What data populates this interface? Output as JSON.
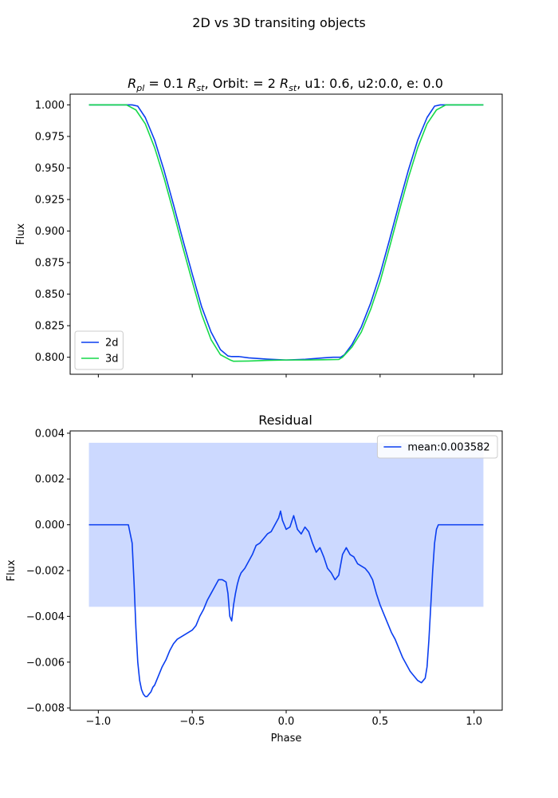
{
  "figure": {
    "title": "2D vs 3D transiting objects"
  },
  "chart_data": [
    {
      "type": "line",
      "title_parts": {
        "r": "R",
        "pl": "pl",
        "eq1": " = 0.1 ",
        "rst": "R",
        "st": "st",
        "mid": ", Orbit: = 2 ",
        "rst2": "R",
        "st2": "st",
        "tail": ", u1: 0.6, u2:0.0, e: 0.0"
      },
      "xlabel": "",
      "ylabel": "Flux",
      "xlim": [
        -1.15,
        1.15
      ],
      "ylim": [
        0.7865,
        1.0085
      ],
      "xticks": [
        -1.0,
        -0.5,
        0.0,
        0.5,
        1.0
      ],
      "yticks": [
        0.8,
        0.825,
        0.85,
        0.875,
        0.9,
        0.925,
        0.95,
        0.975,
        1.0
      ],
      "ytick_labels": [
        "0.800",
        "0.825",
        "0.850",
        "0.875",
        "0.900",
        "0.925",
        "0.950",
        "0.975",
        "1.000"
      ],
      "legend": {
        "position": "lower-left"
      },
      "series": [
        {
          "name": "2d",
          "color": "#0a3ef0",
          "x": [
            -1.05,
            -0.82,
            -0.79,
            -0.75,
            -0.7,
            -0.65,
            -0.6,
            -0.55,
            -0.5,
            -0.45,
            -0.4,
            -0.35,
            -0.31,
            -0.29,
            -0.25,
            -0.2,
            -0.1,
            0.0,
            0.1,
            0.2,
            0.25,
            0.29,
            0.31,
            0.35,
            0.4,
            0.45,
            0.5,
            0.55,
            0.6,
            0.65,
            0.7,
            0.75,
            0.79,
            0.82,
            1.05
          ],
          "y": [
            1.0,
            1.0,
            0.999,
            0.99,
            0.972,
            0.948,
            0.921,
            0.893,
            0.866,
            0.84,
            0.82,
            0.806,
            0.801,
            0.8005,
            0.8005,
            0.7995,
            0.7985,
            0.7978,
            0.7983,
            0.7995,
            0.8,
            0.8,
            0.802,
            0.81,
            0.824,
            0.843,
            0.866,
            0.893,
            0.921,
            0.948,
            0.972,
            0.99,
            0.999,
            1.0,
            1.0
          ]
        },
        {
          "name": "3d",
          "color": "#17d94a",
          "x": [
            -1.05,
            -0.85,
            -0.8,
            -0.75,
            -0.7,
            -0.65,
            -0.6,
            -0.55,
            -0.5,
            -0.45,
            -0.4,
            -0.35,
            -0.3,
            -0.28,
            -0.2,
            -0.1,
            0.0,
            0.1,
            0.2,
            0.28,
            0.3,
            0.35,
            0.4,
            0.45,
            0.5,
            0.55,
            0.6,
            0.65,
            0.7,
            0.75,
            0.8,
            0.85,
            1.05
          ],
          "y": [
            1.0,
            1.0,
            0.996,
            0.985,
            0.966,
            0.942,
            0.915,
            0.887,
            0.86,
            0.834,
            0.814,
            0.802,
            0.798,
            0.7968,
            0.797,
            0.7975,
            0.7978,
            0.7978,
            0.798,
            0.7982,
            0.8,
            0.808,
            0.82,
            0.838,
            0.86,
            0.887,
            0.915,
            0.942,
            0.966,
            0.985,
            0.996,
            1.0,
            1.0
          ]
        }
      ]
    },
    {
      "type": "line",
      "title": "Residual",
      "xlabel": "Phase",
      "ylabel": "Flux",
      "xlim": [
        -1.15,
        1.15
      ],
      "ylim": [
        -0.0081,
        0.0041
      ],
      "xticks": [
        -1.0,
        -0.5,
        0.0,
        0.5,
        1.0
      ],
      "xtick_labels": [
        "−1.0",
        "−0.5",
        "0.0",
        "0.5",
        "1.0"
      ],
      "yticks": [
        -0.008,
        -0.006,
        -0.004,
        -0.002,
        0.0,
        0.002,
        0.004
      ],
      "ytick_labels": [
        "−0.008",
        "−0.006",
        "−0.004",
        "−0.002",
        "0.000",
        "0.002",
        "0.004"
      ],
      "legend": {
        "position": "upper-right"
      },
      "band": {
        "x": [
          -1.05,
          1.05
        ],
        "y": [
          -0.003582,
          0.003582
        ],
        "color": "#ccd9ff"
      },
      "series": [
        {
          "name": "mean:0.003582",
          "color": "#0a3ef0",
          "x": [
            -1.05,
            -0.84,
            -0.82,
            -0.81,
            -0.8,
            -0.79,
            -0.78,
            -0.77,
            -0.76,
            -0.75,
            -0.74,
            -0.73,
            -0.72,
            -0.71,
            -0.7,
            -0.69,
            -0.68,
            -0.66,
            -0.64,
            -0.62,
            -0.6,
            -0.58,
            -0.56,
            -0.54,
            -0.52,
            -0.5,
            -0.48,
            -0.46,
            -0.44,
            -0.42,
            -0.4,
            -0.38,
            -0.36,
            -0.34,
            -0.32,
            -0.31,
            -0.3,
            -0.29,
            -0.28,
            -0.27,
            -0.26,
            -0.25,
            -0.24,
            -0.23,
            -0.22,
            -0.2,
            -0.18,
            -0.16,
            -0.14,
            -0.12,
            -0.1,
            -0.08,
            -0.06,
            -0.04,
            -0.03,
            -0.02,
            -0.01,
            0.0,
            0.02,
            0.04,
            0.06,
            0.08,
            0.1,
            0.12,
            0.14,
            0.16,
            0.18,
            0.2,
            0.22,
            0.24,
            0.26,
            0.28,
            0.3,
            0.32,
            0.34,
            0.36,
            0.38,
            0.4,
            0.42,
            0.44,
            0.46,
            0.48,
            0.5,
            0.52,
            0.54,
            0.56,
            0.58,
            0.6,
            0.62,
            0.64,
            0.66,
            0.68,
            0.7,
            0.72,
            0.74,
            0.75,
            0.76,
            0.77,
            0.78,
            0.79,
            0.8,
            0.81,
            0.82,
            0.84,
            1.05
          ],
          "y": [
            0.0,
            0.0,
            -0.0008,
            -0.0025,
            -0.0045,
            -0.006,
            -0.0068,
            -0.0072,
            -0.0074,
            -0.0075,
            -0.0075,
            -0.0074,
            -0.0073,
            -0.0071,
            -0.007,
            -0.0068,
            -0.0066,
            -0.0062,
            -0.0059,
            -0.0055,
            -0.0052,
            -0.005,
            -0.0049,
            -0.0048,
            -0.0047,
            -0.0046,
            -0.0044,
            -0.004,
            -0.0037,
            -0.0033,
            -0.003,
            -0.0027,
            -0.0024,
            -0.0024,
            -0.0025,
            -0.003,
            -0.004,
            -0.0042,
            -0.0035,
            -0.003,
            -0.0026,
            -0.0023,
            -0.0021,
            -0.002,
            -0.0019,
            -0.0016,
            -0.0013,
            -0.0009,
            -0.0008,
            -0.0006,
            -0.0004,
            -0.0003,
            0.0,
            0.0003,
            0.0006,
            0.0002,
            0.0,
            -0.0002,
            -0.0001,
            0.0004,
            -0.0002,
            -0.0004,
            -0.0001,
            -0.0003,
            -0.0008,
            -0.0012,
            -0.001,
            -0.0014,
            -0.0019,
            -0.0021,
            -0.0024,
            -0.0022,
            -0.0013,
            -0.001,
            -0.0013,
            -0.0014,
            -0.0017,
            -0.0018,
            -0.0019,
            -0.0021,
            -0.0024,
            -0.003,
            -0.0035,
            -0.0039,
            -0.0043,
            -0.0047,
            -0.005,
            -0.0054,
            -0.0058,
            -0.0061,
            -0.0064,
            -0.0066,
            -0.0068,
            -0.0069,
            -0.0067,
            -0.0062,
            -0.005,
            -0.0035,
            -0.002,
            -0.0008,
            -0.0002,
            0.0,
            0.0,
            0.0,
            0.0
          ]
        }
      ]
    }
  ]
}
